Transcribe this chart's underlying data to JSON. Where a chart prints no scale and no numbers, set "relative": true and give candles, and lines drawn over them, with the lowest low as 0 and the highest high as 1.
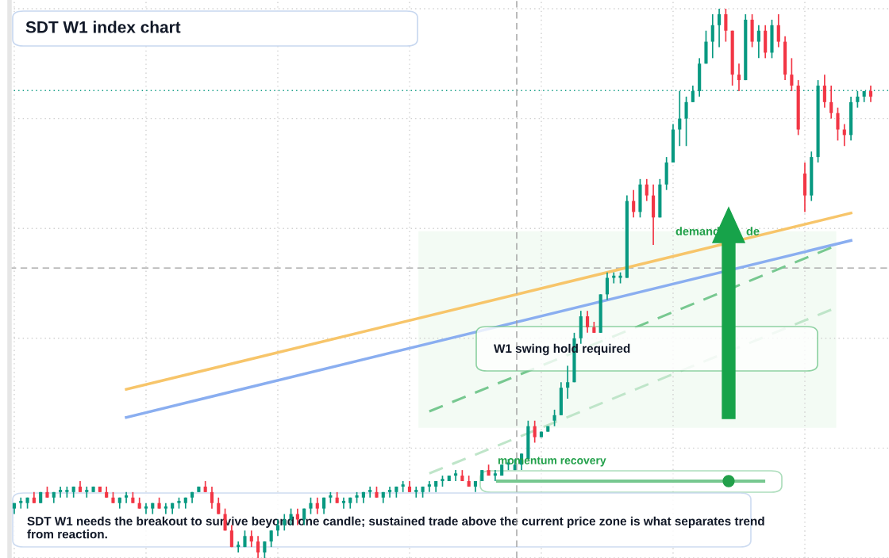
{
  "chart_data": {
    "type": "candlestick",
    "title": "SDT W1 index chart",
    "relative": true,
    "grid": true,
    "categories": [
      null,
      null,
      null,
      null,
      null,
      null,
      null,
      null,
      null,
      null,
      null,
      null,
      null,
      null,
      null,
      null,
      null,
      null,
      null,
      null,
      null,
      null,
      null,
      null,
      null,
      null,
      null,
      null,
      null,
      null,
      null,
      null,
      null,
      null,
      null,
      null,
      null,
      null,
      null,
      null,
      null,
      null,
      null,
      null,
      null,
      null,
      null,
      null,
      null,
      null,
      null,
      null,
      null,
      null,
      null,
      null,
      null,
      null,
      null,
      null,
      null,
      null,
      null,
      null,
      null,
      null,
      null,
      null,
      null,
      null,
      null,
      null,
      null,
      null,
      null,
      null,
      null,
      null,
      null,
      null,
      null,
      null,
      null,
      null,
      null,
      null,
      null,
      null,
      null,
      null,
      null,
      null,
      null,
      null,
      null,
      null,
      null,
      null,
      null,
      null,
      null,
      null,
      null,
      null,
      null,
      null,
      null,
      null,
      null,
      null,
      null,
      null,
      null,
      null,
      null,
      null,
      null,
      null,
      null,
      null,
      null,
      null,
      null,
      null,
      null,
      null,
      null,
      null,
      null,
      null,
      null
    ],
    "ohlc": [
      [
        0.09,
        0.1,
        0.08,
        0.1
      ],
      [
        0.1,
        0.11,
        0.09,
        0.1
      ],
      [
        0.1,
        0.11,
        0.09,
        0.11
      ],
      [
        0.11,
        0.12,
        0.1,
        0.1
      ],
      [
        0.1,
        0.12,
        0.1,
        0.12
      ],
      [
        0.12,
        0.13,
        0.11,
        0.11
      ],
      [
        0.11,
        0.12,
        0.1,
        0.12
      ],
      [
        0.12,
        0.13,
        0.11,
        0.12
      ],
      [
        0.12,
        0.13,
        0.11,
        0.12
      ],
      [
        0.12,
        0.13,
        0.11,
        0.13
      ],
      [
        0.13,
        0.14,
        0.12,
        0.12
      ],
      [
        0.12,
        0.13,
        0.11,
        0.12
      ],
      [
        0.12,
        0.13,
        0.12,
        0.13
      ],
      [
        0.13,
        0.13,
        0.12,
        0.12
      ],
      [
        0.12,
        0.13,
        0.11,
        0.11
      ],
      [
        0.11,
        0.12,
        0.1,
        0.1
      ],
      [
        0.1,
        0.11,
        0.09,
        0.11
      ],
      [
        0.11,
        0.12,
        0.1,
        0.11
      ],
      [
        0.11,
        0.12,
        0.1,
        0.1
      ],
      [
        0.1,
        0.11,
        0.09,
        0.09
      ],
      [
        0.09,
        0.1,
        0.08,
        0.09
      ],
      [
        0.09,
        0.1,
        0.08,
        0.1
      ],
      [
        0.1,
        0.11,
        0.09,
        0.09
      ],
      [
        0.09,
        0.1,
        0.08,
        0.09
      ],
      [
        0.09,
        0.1,
        0.08,
        0.1
      ],
      [
        0.1,
        0.11,
        0.09,
        0.1
      ],
      [
        0.1,
        0.11,
        0.09,
        0.11
      ],
      [
        0.11,
        0.12,
        0.1,
        0.12
      ],
      [
        0.12,
        0.13,
        0.12,
        0.13
      ],
      [
        0.13,
        0.14,
        0.12,
        0.12
      ],
      [
        0.12,
        0.13,
        0.09,
        0.1
      ],
      [
        0.1,
        0.11,
        0.08,
        0.08
      ],
      [
        0.08,
        0.09,
        0.05,
        0.05
      ],
      [
        0.05,
        0.06,
        0.02,
        0.02
      ],
      [
        0.02,
        0.03,
        0.01,
        0.02
      ],
      [
        0.02,
        0.05,
        0.02,
        0.04
      ],
      [
        0.04,
        0.05,
        0.02,
        0.03
      ],
      [
        0.03,
        0.04,
        0.0,
        0.01
      ],
      [
        0.01,
        0.03,
        0.0,
        0.03
      ],
      [
        0.03,
        0.05,
        0.02,
        0.05
      ],
      [
        0.05,
        0.07,
        0.04,
        0.06
      ],
      [
        0.06,
        0.08,
        0.05,
        0.07
      ],
      [
        0.07,
        0.09,
        0.06,
        0.08
      ],
      [
        0.08,
        0.09,
        0.06,
        0.07
      ],
      [
        0.07,
        0.09,
        0.06,
        0.09
      ],
      [
        0.09,
        0.11,
        0.08,
        0.1
      ],
      [
        0.1,
        0.11,
        0.08,
        0.09
      ],
      [
        0.09,
        0.11,
        0.08,
        0.11
      ],
      [
        0.11,
        0.12,
        0.1,
        0.11
      ],
      [
        0.11,
        0.12,
        0.1,
        0.1
      ],
      [
        0.1,
        0.11,
        0.09,
        0.1
      ],
      [
        0.1,
        0.11,
        0.09,
        0.11
      ],
      [
        0.11,
        0.12,
        0.1,
        0.11
      ],
      [
        0.11,
        0.12,
        0.1,
        0.12
      ],
      [
        0.12,
        0.13,
        0.11,
        0.12
      ],
      [
        0.12,
        0.13,
        0.11,
        0.11
      ],
      [
        0.11,
        0.12,
        0.1,
        0.12
      ],
      [
        0.12,
        0.13,
        0.11,
        0.12
      ],
      [
        0.12,
        0.13,
        0.11,
        0.13
      ],
      [
        0.13,
        0.14,
        0.12,
        0.13
      ],
      [
        0.13,
        0.14,
        0.12,
        0.12
      ],
      [
        0.12,
        0.13,
        0.11,
        0.12
      ],
      [
        0.12,
        0.13,
        0.11,
        0.13
      ],
      [
        0.13,
        0.14,
        0.12,
        0.13
      ],
      [
        0.13,
        0.14,
        0.12,
        0.14
      ],
      [
        0.14,
        0.15,
        0.13,
        0.14
      ],
      [
        0.14,
        0.15,
        0.14,
        0.15
      ],
      [
        0.15,
        0.16,
        0.14,
        0.15
      ],
      [
        0.15,
        0.16,
        0.14,
        0.14
      ],
      [
        0.14,
        0.15,
        0.13,
        0.13
      ],
      [
        0.13,
        0.14,
        0.12,
        0.14
      ],
      [
        0.14,
        0.16,
        0.14,
        0.16
      ],
      [
        0.16,
        0.17,
        0.15,
        0.15
      ],
      [
        0.15,
        0.16,
        0.14,
        0.15
      ],
      [
        0.15,
        0.17,
        0.15,
        0.17
      ],
      [
        0.17,
        0.18,
        0.16,
        0.17
      ],
      [
        0.16,
        0.18,
        0.16,
        0.17
      ],
      [
        0.17,
        0.19,
        0.16,
        0.19
      ],
      [
        0.18,
        0.25,
        0.18,
        0.24
      ],
      [
        0.24,
        0.25,
        0.21,
        0.22
      ],
      [
        0.22,
        0.23,
        0.22,
        0.23
      ],
      [
        0.23,
        0.24,
        0.23,
        0.24
      ],
      [
        0.25,
        0.27,
        0.24,
        0.26
      ],
      [
        0.26,
        0.32,
        0.26,
        0.31
      ],
      [
        0.31,
        0.35,
        0.29,
        0.32
      ],
      [
        0.32,
        0.41,
        0.32,
        0.4
      ],
      [
        0.4,
        0.45,
        0.39,
        0.44
      ],
      [
        0.44,
        0.45,
        0.41,
        0.42
      ],
      [
        0.42,
        0.43,
        0.41,
        0.41
      ],
      [
        0.41,
        0.48,
        0.41,
        0.48
      ],
      [
        0.48,
        0.52,
        0.47,
        0.51
      ],
      [
        0.51,
        0.52,
        0.5,
        0.51
      ],
      [
        0.51,
        0.52,
        0.5,
        0.51
      ],
      [
        0.51,
        0.66,
        0.51,
        0.65
      ],
      [
        0.65,
        0.67,
        0.62,
        0.63
      ],
      [
        0.63,
        0.69,
        0.62,
        0.68
      ],
      [
        0.68,
        0.69,
        0.65,
        0.66
      ],
      [
        0.66,
        0.68,
        0.57,
        0.62
      ],
      [
        0.62,
        0.69,
        0.62,
        0.68
      ],
      [
        0.68,
        0.73,
        0.67,
        0.72
      ],
      [
        0.72,
        0.79,
        0.72,
        0.78
      ],
      [
        0.78,
        0.85,
        0.75,
        0.8
      ],
      [
        0.8,
        0.84,
        0.75,
        0.83
      ],
      [
        0.83,
        0.86,
        0.83,
        0.85
      ],
      [
        0.85,
        0.91,
        0.84,
        0.9
      ],
      [
        0.9,
        0.96,
        0.9,
        0.94
      ],
      [
        0.94,
        0.99,
        0.91,
        0.97
      ],
      [
        0.97,
        1.0,
        0.93,
        0.99
      ],
      [
        0.99,
        1.0,
        0.94,
        0.96
      ],
      [
        0.96,
        0.96,
        0.86,
        0.88
      ],
      [
        0.88,
        0.9,
        0.85,
        0.87
      ],
      [
        0.87,
        0.99,
        0.87,
        0.98
      ],
      [
        0.98,
        0.99,
        0.93,
        0.94
      ],
      [
        0.94,
        0.97,
        0.91,
        0.96
      ],
      [
        0.96,
        0.97,
        0.91,
        0.92
      ],
      [
        0.92,
        0.98,
        0.91,
        0.97
      ],
      [
        0.97,
        0.99,
        0.93,
        0.94
      ],
      [
        0.94,
        0.95,
        0.87,
        0.88
      ],
      [
        0.88,
        0.91,
        0.85,
        0.86
      ],
      [
        0.86,
        0.87,
        0.77,
        0.78
      ],
      [
        0.7,
        0.72,
        0.63,
        0.66
      ],
      [
        0.66,
        0.74,
        0.65,
        0.73
      ],
      [
        0.73,
        0.87,
        0.72,
        0.86
      ],
      [
        0.86,
        0.88,
        0.82,
        0.83
      ],
      [
        0.83,
        0.86,
        0.8,
        0.81
      ],
      [
        0.81,
        0.82,
        0.76,
        0.78
      ],
      [
        0.78,
        0.79,
        0.75,
        0.77
      ],
      [
        0.77,
        0.84,
        0.76,
        0.83
      ],
      [
        0.83,
        0.85,
        0.82,
        0.84
      ],
      [
        0.84,
        0.85,
        0.83,
        0.85
      ],
      [
        0.85,
        0.86,
        0.83,
        0.84
      ]
    ],
    "series": [
      {
        "type": "line",
        "color": "#f7c56a",
        "line_style": "solid",
        "values": [
          null,
          null,
          null,
          null,
          null,
          null,
          null,
          null,
          null,
          null,
          null,
          null,
          null,
          null,
          null,
          null,
          null,
          0.307,
          null,
          null,
          null,
          null,
          null,
          null,
          null,
          null,
          null,
          null,
          null,
          null,
          null,
          null,
          null,
          null,
          null,
          null,
          null,
          null,
          null,
          null,
          null,
          null,
          null,
          null,
          null,
          null,
          null,
          null,
          null,
          null,
          null,
          null,
          null,
          null,
          null,
          null,
          null,
          null,
          null,
          null,
          null,
          null,
          null,
          null,
          null,
          null,
          null,
          null,
          null,
          null,
          null,
          null,
          null,
          null,
          null,
          null,
          null,
          null,
          null,
          null,
          null,
          null,
          null,
          null,
          null,
          null,
          null,
          null,
          null,
          null,
          null,
          null,
          null,
          null,
          null,
          null,
          null,
          null,
          null,
          null,
          null,
          null,
          null,
          null,
          null,
          null,
          null,
          null,
          null,
          null,
          null,
          null,
          null,
          null,
          null,
          null,
          null,
          null,
          null,
          null,
          null,
          null,
          null,
          null,
          null,
          null,
          null,
          0.628,
          null,
          null,
          null
        ]
      },
      {
        "type": "line",
        "color": "#8aaef0",
        "line_style": "solid",
        "values": [
          null,
          null,
          null,
          null,
          null,
          null,
          null,
          null,
          null,
          null,
          null,
          null,
          null,
          null,
          null,
          null,
          null,
          0.256,
          null,
          null,
          null,
          null,
          null,
          null,
          null,
          null,
          null,
          null,
          null,
          null,
          null,
          null,
          null,
          null,
          null,
          null,
          null,
          null,
          null,
          null,
          null,
          null,
          null,
          null,
          null,
          null,
          null,
          null,
          null,
          null,
          null,
          null,
          null,
          null,
          null,
          null,
          null,
          null,
          null,
          null,
          null,
          null,
          null,
          null,
          null,
          null,
          null,
          null,
          null,
          null,
          null,
          null,
          null,
          null,
          null,
          null,
          null,
          null,
          null,
          null,
          null,
          null,
          null,
          null,
          null,
          null,
          null,
          null,
          null,
          null,
          null,
          null,
          null,
          null,
          null,
          null,
          null,
          null,
          null,
          null,
          null,
          null,
          null,
          null,
          null,
          null,
          null,
          null,
          null,
          null,
          null,
          null,
          null,
          null,
          null,
          null,
          null,
          null,
          null,
          null,
          null,
          null,
          null,
          null,
          null,
          null,
          null,
          0.578,
          null,
          null,
          null
        ]
      },
      {
        "type": "line",
        "color": "#77c890",
        "line_style": "dashed",
        "values": [
          null,
          null,
          null,
          null,
          null,
          null,
          null,
          null,
          null,
          null,
          null,
          null,
          null,
          null,
          null,
          null,
          null,
          null,
          null,
          null,
          null,
          null,
          null,
          null,
          null,
          null,
          null,
          null,
          null,
          null,
          null,
          null,
          null,
          null,
          null,
          null,
          null,
          null,
          null,
          null,
          null,
          null,
          null,
          null,
          null,
          null,
          null,
          null,
          null,
          null,
          null,
          null,
          null,
          null,
          null,
          null,
          null,
          null,
          null,
          null,
          null,
          null,
          null,
          0.267,
          null,
          null,
          null,
          null,
          null,
          null,
          null,
          null,
          null,
          null,
          null,
          null,
          null,
          null,
          null,
          null,
          null,
          null,
          null,
          null,
          null,
          null,
          null,
          null,
          null,
          null,
          null,
          null,
          null,
          null,
          null,
          null,
          null,
          null,
          null,
          null,
          null,
          null,
          null,
          null,
          null,
          null,
          null,
          null,
          null,
          null,
          null,
          null,
          null,
          null,
          null,
          null,
          null,
          null,
          null,
          null,
          null,
          null,
          null,
          null,
          0.565,
          null,
          null,
          null,
          null,
          null,
          null
        ]
      },
      {
        "type": "line",
        "color": "#bfe5c9",
        "line_style": "dashed",
        "values": [
          null,
          null,
          null,
          null,
          null,
          null,
          null,
          null,
          null,
          null,
          null,
          null,
          null,
          null,
          null,
          null,
          null,
          null,
          null,
          null,
          null,
          null,
          null,
          null,
          null,
          null,
          null,
          null,
          null,
          null,
          null,
          null,
          null,
          null,
          null,
          null,
          null,
          null,
          null,
          null,
          null,
          null,
          null,
          null,
          null,
          null,
          null,
          null,
          null,
          null,
          null,
          null,
          null,
          null,
          null,
          null,
          null,
          null,
          null,
          null,
          null,
          null,
          null,
          0.154,
          null,
          null,
          null,
          null,
          null,
          null,
          null,
          null,
          null,
          null,
          null,
          null,
          null,
          null,
          null,
          null,
          null,
          null,
          null,
          null,
          null,
          null,
          null,
          null,
          null,
          null,
          null,
          null,
          null,
          null,
          null,
          null,
          null,
          null,
          null,
          null,
          null,
          null,
          null,
          null,
          null,
          null,
          null,
          null,
          null,
          null,
          null,
          null,
          null,
          null,
          null,
          null,
          null,
          null,
          null,
          null,
          null,
          null,
          null,
          null,
          0.452,
          null,
          null,
          null,
          null,
          null,
          null
        ]
      }
    ],
    "ref_lines": [
      {
        "axis": "y",
        "value": 0.528,
        "color": "#9e9e9e",
        "line_style": "dashed"
      },
      {
        "axis": "y",
        "value": 0.851,
        "color": "#089981",
        "line_style": "dotted"
      }
    ],
    "bands": [
      {
        "axis": "y",
        "from": 0.237,
        "to": 0.595,
        "color": "#f3fbf4"
      }
    ],
    "annotations": [
      "W1 swing hold required",
      "SDT W1 needs the breakout to survive beyond one candle; sustained trade above the current price zone is what separates trend from reaction.",
      "momentum recovery",
      "demand",
      "de"
    ]
  }
}
